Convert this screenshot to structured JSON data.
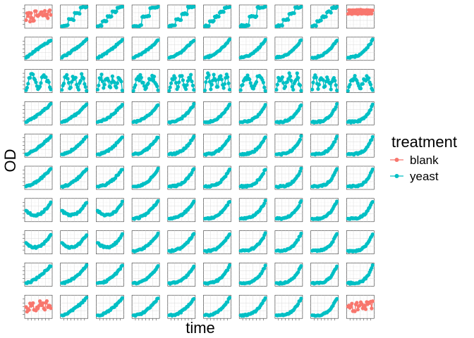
{
  "chart_data": {
    "type": "scatter",
    "layout": "facet-grid",
    "rows": 10,
    "cols": 10,
    "xlabel": "time",
    "ylabel": "OD",
    "legend": {
      "title": "treatment",
      "position": "right",
      "entries": [
        {
          "name": "blank",
          "color": "#F8766D"
        },
        {
          "name": "yeast",
          "color": "#00BFC4"
        }
      ]
    },
    "series_colors": {
      "blank": "#F8766D",
      "yeast": "#00BFC4"
    },
    "blank_panels": [
      [
        0,
        0
      ],
      [
        0,
        9
      ],
      [
        9,
        0
      ],
      [
        9,
        9
      ]
    ],
    "point_style": "filled circles connected by lines",
    "grid": true,
    "tick_labels_visible": false
  }
}
